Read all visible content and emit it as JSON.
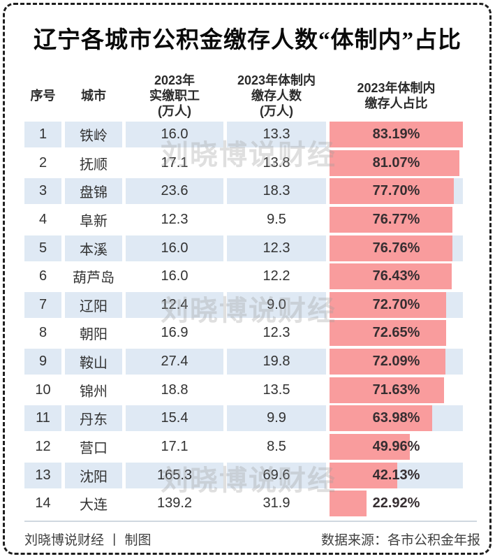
{
  "title": "辽宁各城市公积金缴存人数“体制内”占比",
  "watermark": "刘晓博说财经",
  "table": {
    "headers": {
      "index": "序号",
      "city": "城市",
      "employees_lines": [
        "2023年",
        "实缴职工",
        "(万人)"
      ],
      "contributors_lines": [
        "2023年体制内",
        "缴存人数",
        "(万人)"
      ],
      "share_lines": [
        "2023年体制内",
        "缴存人占比"
      ]
    },
    "rows": [
      {
        "index": "1",
        "city": "铁岭",
        "employees": "16.0",
        "contributors": "13.3",
        "share": "83.19%",
        "share_value": 83.19
      },
      {
        "index": "2",
        "city": "抚顺",
        "employees": "17.1",
        "contributors": "13.8",
        "share": "81.07%",
        "share_value": 81.07
      },
      {
        "index": "3",
        "city": "盘锦",
        "employees": "23.6",
        "contributors": "18.3",
        "share": "77.70%",
        "share_value": 77.7
      },
      {
        "index": "4",
        "city": "阜新",
        "employees": "12.3",
        "contributors": "9.5",
        "share": "76.77%",
        "share_value": 76.77
      },
      {
        "index": "5",
        "city": "本溪",
        "employees": "16.0",
        "contributors": "12.3",
        "share": "76.76%",
        "share_value": 76.76
      },
      {
        "index": "6",
        "city": "葫芦岛",
        "employees": "16.0",
        "contributors": "12.2",
        "share": "76.43%",
        "share_value": 76.43
      },
      {
        "index": "7",
        "city": "辽阳",
        "employees": "12.4",
        "contributors": "9.0",
        "share": "72.70%",
        "share_value": 72.7
      },
      {
        "index": "8",
        "city": "朝阳",
        "employees": "16.9",
        "contributors": "12.3",
        "share": "72.65%",
        "share_value": 72.65
      },
      {
        "index": "9",
        "city": "鞍山",
        "employees": "27.4",
        "contributors": "19.8",
        "share": "72.09%",
        "share_value": 72.09
      },
      {
        "index": "10",
        "city": "锦州",
        "employees": "18.8",
        "contributors": "13.5",
        "share": "71.63%",
        "share_value": 71.63
      },
      {
        "index": "11",
        "city": "丹东",
        "employees": "15.4",
        "contributors": "9.9",
        "share": "63.98%",
        "share_value": 63.98
      },
      {
        "index": "12",
        "city": "营口",
        "employees": "17.1",
        "contributors": "8.5",
        "share": "49.96%",
        "share_value": 49.96
      },
      {
        "index": "13",
        "city": "沈阳",
        "employees": "165.3",
        "contributors": "69.6",
        "share": "42.13%",
        "share_value": 42.13
      },
      {
        "index": "14",
        "city": "大连",
        "employees": "139.2",
        "contributors": "31.9",
        "share": "22.92%",
        "share_value": 22.92
      }
    ]
  },
  "footer": {
    "left": "刘晓博说财经 丨 制图",
    "right": "数据来源：各市公积金年报"
  },
  "colors": {
    "bar": "#f99c9d",
    "row_alt": "#dfe9f4",
    "border": "#1f1f1f"
  },
  "chart_data": {
    "type": "table",
    "title": "辽宁各城市公积金缴存人数“体制内”占比",
    "categories": [
      "铁岭",
      "抚顺",
      "盘锦",
      "阜新",
      "本溪",
      "葫芦岛",
      "辽阳",
      "朝阳",
      "鞍山",
      "锦州",
      "丹东",
      "营口",
      "沈阳",
      "大连"
    ],
    "series": [
      {
        "name": "2023年实缴职工(万人)",
        "values": [
          16.0,
          17.1,
          23.6,
          12.3,
          16.0,
          16.0,
          12.4,
          16.9,
          27.4,
          18.8,
          15.4,
          17.1,
          165.3,
          139.2
        ]
      },
      {
        "name": "2023年体制内缴存人数(万人)",
        "values": [
          13.3,
          13.8,
          18.3,
          9.5,
          12.3,
          12.2,
          9.0,
          12.3,
          19.8,
          13.5,
          9.9,
          8.5,
          69.6,
          31.9
        ]
      },
      {
        "name": "2023年体制内缴存人占比(%)",
        "values": [
          83.19,
          81.07,
          77.7,
          76.77,
          76.76,
          76.43,
          72.7,
          72.65,
          72.09,
          71.63,
          63.98,
          49.96,
          42.13,
          22.92
        ]
      }
    ],
    "bar_column": "2023年体制内缴存人占比(%)",
    "bar_scale_max": 83.19,
    "legend_position": "none",
    "grid": false,
    "source": "各市公积金年报"
  }
}
